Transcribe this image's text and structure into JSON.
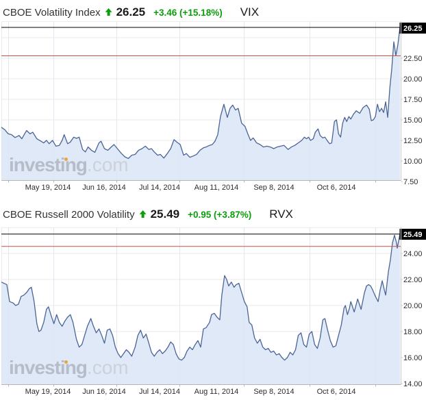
{
  "watermark": {
    "brand": "investing",
    "suffix": ".com"
  },
  "colors": {
    "green": "#0a9e0a",
    "line": "#4a6496",
    "fill": "#d9e5f7",
    "prev_close_line": "#cf4d47",
    "current_line": "#000000",
    "grid_h": "#e9e9e9",
    "grid_v": "#e2e6ee",
    "axis": "#b5b5b5",
    "axis_right": "#cccccc",
    "axis_text": "#2b2b2b",
    "badge_bg": "#000000",
    "badge_text": "#ffffff"
  },
  "charts": [
    {
      "name": "CBOE Volatility Index",
      "direction": "up",
      "last": "26.25",
      "change": "+3.46 (+15.18%)",
      "symbol": "VIX",
      "badge": "26.25"
    },
    {
      "name": "CBOE Russell 2000 Volatility",
      "direction": "up",
      "last": "25.49",
      "change": "+0.95 (+3.87%)",
      "symbol": "RVX",
      "badge": "25.49"
    }
  ],
  "chart_data": [
    {
      "type": "area",
      "title": "CBOE Volatility Index",
      "symbol": "VIX",
      "last": 26.25,
      "change": 3.46,
      "change_pct": 15.18,
      "prev_close": 22.79,
      "grid": true,
      "legend": "none",
      "ylim": [
        7.67,
        27.0
      ],
      "y_ticks": [
        {
          "label": "22.50",
          "value": 22.5
        },
        {
          "label": "20.00",
          "value": 20.0
        },
        {
          "label": "17.50",
          "value": 17.5
        },
        {
          "label": "15.00",
          "value": 15.0
        },
        {
          "label": "12.50",
          "value": 12.5
        },
        {
          "label": "10.00",
          "value": 10.0
        },
        {
          "label": "7.50",
          "value": 7.5
        }
      ],
      "grid_values": [
        25.0,
        22.5,
        20.0,
        17.5,
        15.0,
        12.5,
        10.0
      ],
      "x_tick_labels": [
        "May 19, 2014",
        "Jun 16, 2014",
        "Jul 14, 2014",
        "Aug 11, 2014",
        "Sep 8, 2014",
        "Oct 6, 2014"
      ],
      "points": [
        [
          0,
          14.1
        ],
        [
          5,
          13.8
        ],
        [
          10,
          13.3
        ],
        [
          15,
          13.2
        ],
        [
          20,
          12.85
        ],
        [
          26,
          13.1
        ],
        [
          30,
          12.7
        ],
        [
          34,
          13.3
        ],
        [
          37,
          13.7
        ],
        [
          42,
          13.3
        ],
        [
          46,
          13.5
        ],
        [
          52,
          12.7
        ],
        [
          58,
          12.4
        ],
        [
          62,
          12.2
        ],
        [
          66,
          12.5
        ],
        [
          70,
          12.1
        ],
        [
          75,
          12.5
        ],
        [
          80,
          11.8
        ],
        [
          85,
          11.9
        ],
        [
          89,
          12.5
        ],
        [
          92,
          13.2
        ],
        [
          97,
          12.1
        ],
        [
          101,
          12.3
        ],
        [
          106,
          12.9
        ],
        [
          110,
          12.75
        ],
        [
          114,
          12.9
        ],
        [
          119,
          11.4
        ],
        [
          123,
          11.1
        ],
        [
          127,
          11.7
        ],
        [
          132,
          11.3
        ],
        [
          137,
          11.05
        ],
        [
          143,
          12.2
        ],
        [
          146,
          12.4
        ],
        [
          151,
          11.5
        ],
        [
          156,
          11.3
        ],
        [
          161,
          11.7
        ],
        [
          165,
          12.0
        ],
        [
          170,
          11.5
        ],
        [
          176,
          10.9
        ],
        [
          181,
          10.5
        ],
        [
          186,
          10.3
        ],
        [
          191,
          10.7
        ],
        [
          196,
          10.8
        ],
        [
          201,
          11.3
        ],
        [
          206,
          11.5
        ],
        [
          211,
          11.8
        ],
        [
          216,
          11.4
        ],
        [
          220,
          11.5
        ],
        [
          224,
          11.1
        ],
        [
          229,
          10.7
        ],
        [
          233,
          10.8
        ],
        [
          238,
          10.35
        ],
        [
          243,
          10.9
        ],
        [
          248,
          11.5
        ],
        [
          253,
          12.6
        ],
        [
          257,
          12.3
        ],
        [
          262,
          12.0
        ],
        [
          267,
          10.7
        ],
        [
          271,
          10.9
        ],
        [
          276,
          10.45
        ],
        [
          281,
          10.6
        ],
        [
          286,
          10.8
        ],
        [
          291,
          11.3
        ],
        [
          296,
          11.6
        ],
        [
          300,
          11.7
        ],
        [
          305,
          11.9
        ],
        [
          309,
          12.0
        ],
        [
          313,
          12.4
        ],
        [
          317,
          13.2
        ],
        [
          321,
          15.4
        ],
        [
          326,
          16.9
        ],
        [
          331,
          15.3
        ],
        [
          335,
          16.4
        ],
        [
          339,
          16.8
        ],
        [
          343,
          16.2
        ],
        [
          347,
          16.4
        ],
        [
          352,
          14.6
        ],
        [
          357,
          14.2
        ],
        [
          361,
          13.3
        ],
        [
          365,
          12.5
        ],
        [
          369,
          12.8
        ],
        [
          374,
          12.2
        ],
        [
          379,
          12.0
        ],
        [
          384,
          11.7
        ],
        [
          389,
          11.8
        ],
        [
          394,
          11.7
        ],
        [
          399,
          11.5
        ],
        [
          404,
          11.7
        ],
        [
          409,
          11.8
        ],
        [
          414,
          11.9
        ],
        [
          420,
          11.4
        ],
        [
          425,
          11.7
        ],
        [
          430,
          11.9
        ],
        [
          435,
          12.2
        ],
        [
          440,
          12.5
        ],
        [
          444,
          12.9
        ],
        [
          447,
          12.7
        ],
        [
          450,
          12.9
        ],
        [
          453,
          12.5
        ],
        [
          457,
          12.7
        ],
        [
          460,
          13.5
        ],
        [
          464,
          13.9
        ],
        [
          467,
          13.1
        ],
        [
          471,
          12.8
        ],
        [
          474,
          12.9
        ],
        [
          478,
          12.4
        ],
        [
          481,
          12.1
        ],
        [
          484,
          12.2
        ],
        [
          488,
          14.8
        ],
        [
          491,
          15.0
        ],
        [
          494,
          13.3
        ],
        [
          497,
          12.9
        ],
        [
          500,
          14.6
        ],
        [
          503,
          15.3
        ],
        [
          506,
          14.8
        ],
        [
          509,
          15.4
        ],
        [
          512,
          15.1
        ],
        [
          516,
          15.7
        ],
        [
          520,
          16.1
        ],
        [
          525,
          15.8
        ],
        [
          530,
          16.5
        ],
        [
          535,
          16.8
        ],
        [
          539,
          16.3
        ],
        [
          542,
          14.9
        ],
        [
          545,
          15.0
        ],
        [
          548,
          15.4
        ],
        [
          551,
          16.9
        ],
        [
          554,
          16.0
        ],
        [
          557,
          16.4
        ],
        [
          560,
          15.9
        ],
        [
          563,
          17.2
        ],
        [
          566,
          15.3
        ],
        [
          569,
          18.8
        ],
        [
          572,
          21.2
        ],
        [
          575,
          24.5
        ],
        [
          578,
          22.8
        ],
        [
          581,
          24.2
        ],
        [
          584,
          26.25
        ]
      ]
    },
    {
      "type": "area",
      "title": "CBOE Russell 2000 Volatility",
      "symbol": "RVX",
      "last": 25.49,
      "change": 0.95,
      "change_pct": 3.87,
      "prev_close": 24.54,
      "grid": true,
      "legend": "none",
      "ylim": [
        13.95,
        26.0
      ],
      "y_ticks": [
        {
          "label": "24.00",
          "value": 24.0
        },
        {
          "label": "22.00",
          "value": 22.0
        },
        {
          "label": "20.00",
          "value": 20.0
        },
        {
          "label": "18.00",
          "value": 18.0
        },
        {
          "label": "16.00",
          "value": 16.0
        },
        {
          "label": "14.00",
          "value": 14.0
        }
      ],
      "grid_values": [
        24.0,
        22.0,
        20.0,
        18.0,
        16.0,
        14.0
      ],
      "x_tick_labels": [
        "May 19, 2014",
        "Jun 16, 2014",
        "Jul 14, 2014",
        "Aug 11, 2014",
        "Sep 8, 2014",
        "Oct 6, 2014"
      ],
      "points": [
        [
          0,
          21.8
        ],
        [
          4,
          21.7
        ],
        [
          8,
          21.6
        ],
        [
          12,
          20.3
        ],
        [
          17,
          20.2
        ],
        [
          21,
          20.0
        ],
        [
          25,
          20.1
        ],
        [
          29,
          20.7
        ],
        [
          33,
          20.8
        ],
        [
          37,
          21.0
        ],
        [
          41,
          21.3
        ],
        [
          44,
          21.4
        ],
        [
          48,
          20.3
        ],
        [
          52,
          18.6
        ],
        [
          55,
          18.0
        ],
        [
          58,
          18.1
        ],
        [
          62,
          18.7
        ],
        [
          66,
          19.7
        ],
        [
          69,
          19.9
        ],
        [
          73,
          19.2
        ],
        [
          77,
          18.6
        ],
        [
          81,
          19.3
        ],
        [
          85,
          18.7
        ],
        [
          89,
          18.4
        ],
        [
          93,
          18.8
        ],
        [
          97,
          19.1
        ],
        [
          101,
          19.3
        ],
        [
          105,
          18.7
        ],
        [
          110,
          17.4
        ],
        [
          114,
          16.8
        ],
        [
          118,
          17.0
        ],
        [
          122,
          17.7
        ],
        [
          126,
          18.4
        ],
        [
          131,
          19.0
        ],
        [
          135,
          18.4
        ],
        [
          139,
          17.9
        ],
        [
          143,
          18.2
        ],
        [
          147,
          17.7
        ],
        [
          151,
          17.1
        ],
        [
          155,
          18.1
        ],
        [
          159,
          18.2
        ],
        [
          163,
          17.7
        ],
        [
          167,
          16.8
        ],
        [
          171,
          16.3
        ],
        [
          175,
          16.0
        ],
        [
          179,
          16.3
        ],
        [
          183,
          16.6
        ],
        [
          187,
          16.4
        ],
        [
          191,
          16.1
        ],
        [
          196,
          16.8
        ],
        [
          200,
          17.7
        ],
        [
          204,
          18.1
        ],
        [
          208,
          17.5
        ],
        [
          212,
          17.8
        ],
        [
          216,
          17.1
        ],
        [
          220,
          16.4
        ],
        [
          224,
          16.1
        ],
        [
          228,
          16.4
        ],
        [
          232,
          16.6
        ],
        [
          236,
          16.3
        ],
        [
          240,
          16.5
        ],
        [
          244,
          16.8
        ],
        [
          248,
          17.2
        ],
        [
          252,
          17.0
        ],
        [
          256,
          16.3
        ],
        [
          260,
          15.9
        ],
        [
          264,
          15.8
        ],
        [
          268,
          16.0
        ],
        [
          272,
          16.5
        ],
        [
          276,
          16.8
        ],
        [
          280,
          16.6
        ],
        [
          284,
          17.0
        ],
        [
          288,
          17.3
        ],
        [
          292,
          16.8
        ],
        [
          296,
          18.2
        ],
        [
          300,
          18.3
        ],
        [
          305,
          18.7
        ],
        [
          308,
          19.3
        ],
        [
          312,
          19.4
        ],
        [
          316,
          19.1
        ],
        [
          320,
          18.9
        ],
        [
          323,
          20.8
        ],
        [
          327,
          22.3
        ],
        [
          330,
          22.0
        ],
        [
          333,
          21.5
        ],
        [
          337,
          21.8
        ],
        [
          341,
          21.4
        ],
        [
          344,
          21.6
        ],
        [
          348,
          21.7
        ],
        [
          352,
          21.0
        ],
        [
          356,
          20.3
        ],
        [
          360,
          19.9
        ],
        [
          363,
          18.7
        ],
        [
          367,
          18.5
        ],
        [
          371,
          17.5
        ],
        [
          375,
          17.1
        ],
        [
          379,
          17.4
        ],
        [
          383,
          16.8
        ],
        [
          387,
          16.6
        ],
        [
          391,
          16.7
        ],
        [
          395,
          16.4
        ],
        [
          399,
          16.5
        ],
        [
          403,
          16.2
        ],
        [
          407,
          16.3
        ],
        [
          411,
          16.0
        ],
        [
          415,
          15.8
        ],
        [
          419,
          16.0
        ],
        [
          423,
          16.4
        ],
        [
          427,
          16.2
        ],
        [
          431,
          16.6
        ],
        [
          435,
          17.7
        ],
        [
          439,
          17.9
        ],
        [
          443,
          17.0
        ],
        [
          447,
          16.8
        ],
        [
          451,
          17.8
        ],
        [
          455,
          18.0
        ],
        [
          459,
          17.0
        ],
        [
          463,
          16.7
        ],
        [
          467,
          17.5
        ],
        [
          471,
          18.9
        ],
        [
          474,
          19.0
        ],
        [
          478,
          18.1
        ],
        [
          482,
          17.3
        ],
        [
          486,
          16.8
        ],
        [
          490,
          16.9
        ],
        [
          494,
          17.7
        ],
        [
          498,
          18.5
        ],
        [
          502,
          19.8
        ],
        [
          504,
          20.0
        ],
        [
          507,
          19.3
        ],
        [
          510,
          19.8
        ],
        [
          512,
          20.3
        ],
        [
          517,
          19.5
        ],
        [
          522,
          20.5
        ],
        [
          527,
          19.7
        ],
        [
          532,
          21.0
        ],
        [
          535,
          21.5
        ],
        [
          538,
          21.6
        ],
        [
          541,
          21.5
        ],
        [
          544,
          21.2
        ],
        [
          548,
          20.7
        ],
        [
          552,
          20.3
        ],
        [
          555,
          21.2
        ],
        [
          558,
          21.9
        ],
        [
          561,
          21.2
        ],
        [
          563,
          20.8
        ],
        [
          567,
          22.6
        ],
        [
          570,
          23.5
        ],
        [
          573,
          24.8
        ],
        [
          576,
          25.4
        ],
        [
          579,
          24.8
        ],
        [
          580,
          24.4
        ],
        [
          584,
          25.49
        ]
      ]
    }
  ]
}
